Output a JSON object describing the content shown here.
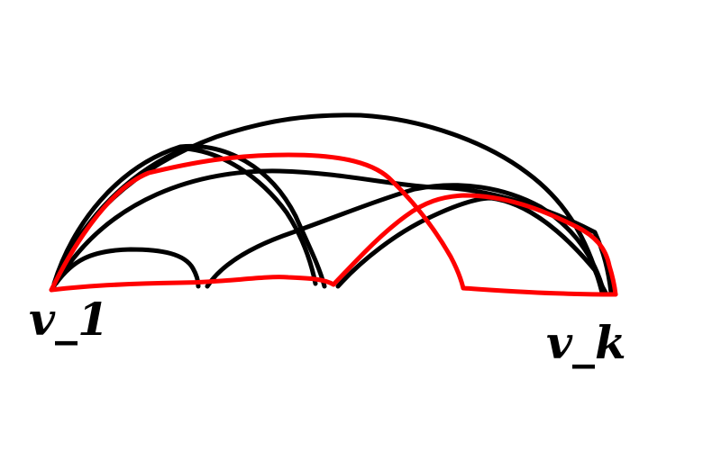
{
  "vertices": {
    "start_label": "v_1",
    "end_label": "v_k"
  },
  "colors": {
    "background": "#ffffff",
    "edges": "#000000",
    "highlighted_path": "#ff0000",
    "labels": "#000000"
  }
}
